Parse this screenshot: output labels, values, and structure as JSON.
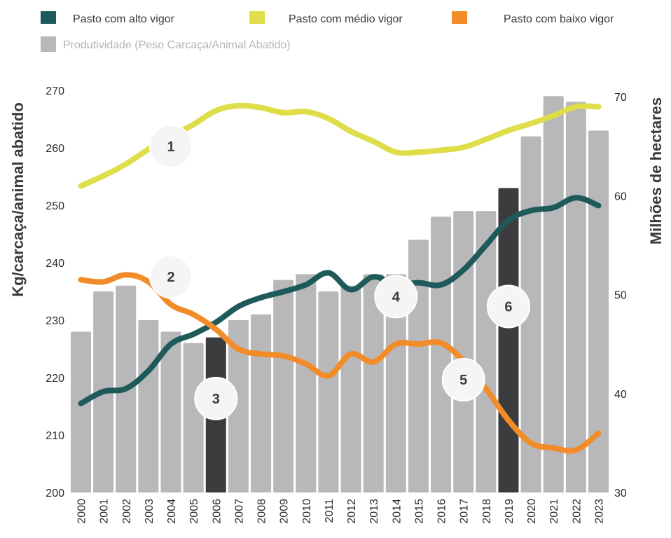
{
  "chart_data": {
    "type": "bar+line",
    "categories": [
      "2000",
      "2001",
      "2002",
      "2003",
      "2004",
      "2005",
      "2006",
      "2007",
      "2008",
      "2009",
      "2010",
      "2011",
      "2012",
      "2013",
      "2014",
      "2015",
      "2016",
      "2017",
      "2018",
      "2019",
      "2020",
      "2021",
      "2022",
      "2023"
    ],
    "bar_series": {
      "name": "Produtividade (Peso Carcaça/Animal Abatido)",
      "axis": "left",
      "color": "#b8b7b9",
      "highlight_color": "#3c3c3e",
      "highlight_categories": [
        "2006",
        "2019"
      ],
      "values": [
        228,
        235,
        236,
        230,
        228,
        226,
        227,
        230,
        231,
        237,
        238,
        235,
        236,
        238,
        238,
        244,
        248,
        249,
        249,
        253,
        262,
        269,
        268,
        263
      ]
    },
    "line_series": [
      {
        "name": "Pasto com alto vigor",
        "axis": "right",
        "color": "#1f5a5a",
        "values": [
          39.0,
          40.2,
          40.5,
          42.3,
          45.0,
          46.0,
          47.2,
          48.8,
          49.7,
          50.3,
          51.0,
          52.2,
          50.5,
          51.8,
          51.0,
          51.2,
          51.0,
          52.5,
          55.0,
          57.5,
          58.5,
          58.8,
          59.8,
          59.0
        ]
      },
      {
        "name": "Pasto com médio vigor",
        "axis": "right",
        "color": "#dedd4a",
        "values": [
          61.0,
          62.0,
          63.2,
          64.7,
          66.0,
          67.2,
          68.6,
          69.1,
          68.9,
          68.4,
          68.5,
          67.8,
          66.5,
          65.5,
          64.4,
          64.4,
          64.6,
          64.9,
          65.7,
          66.6,
          67.3,
          68.1,
          69.0,
          69.0
        ]
      },
      {
        "name": "Pasto com baixo vigor",
        "axis": "right",
        "color": "#f28c28",
        "values": [
          51.5,
          51.3,
          52.0,
          51.3,
          49.0,
          48.0,
          46.5,
          44.5,
          44.0,
          43.8,
          43.0,
          41.8,
          44.0,
          43.2,
          45.0,
          45.0,
          45.1,
          43.3,
          40.5,
          37.3,
          35.0,
          34.5,
          34.3,
          36.0
        ]
      }
    ],
    "left_axis": {
      "title": "Kg/carcaça/animal abatido",
      "ylim": [
        200,
        270
      ],
      "ticks": [
        "200",
        "210",
        "220",
        "230",
        "240",
        "250",
        "260",
        "270"
      ]
    },
    "right_axis": {
      "title": "Milhões de hectares",
      "ylim": [
        30,
        70
      ],
      "ticks": [
        "30",
        "40",
        "50",
        "60",
        "70"
      ]
    },
    "markers": [
      {
        "label": "1",
        "category": "2004",
        "value": 65.0
      },
      {
        "label": "2",
        "category": "2004",
        "value": 51.8
      },
      {
        "label": "3",
        "category": "2006",
        "value": 39.5
      },
      {
        "label": "4",
        "category": "2014",
        "value": 49.8
      },
      {
        "label": "5",
        "category": "2017",
        "value": 41.4
      },
      {
        "label": "6",
        "category": "2019",
        "value": 48.8
      }
    ],
    "legend_position": "top",
    "grid": false
  }
}
